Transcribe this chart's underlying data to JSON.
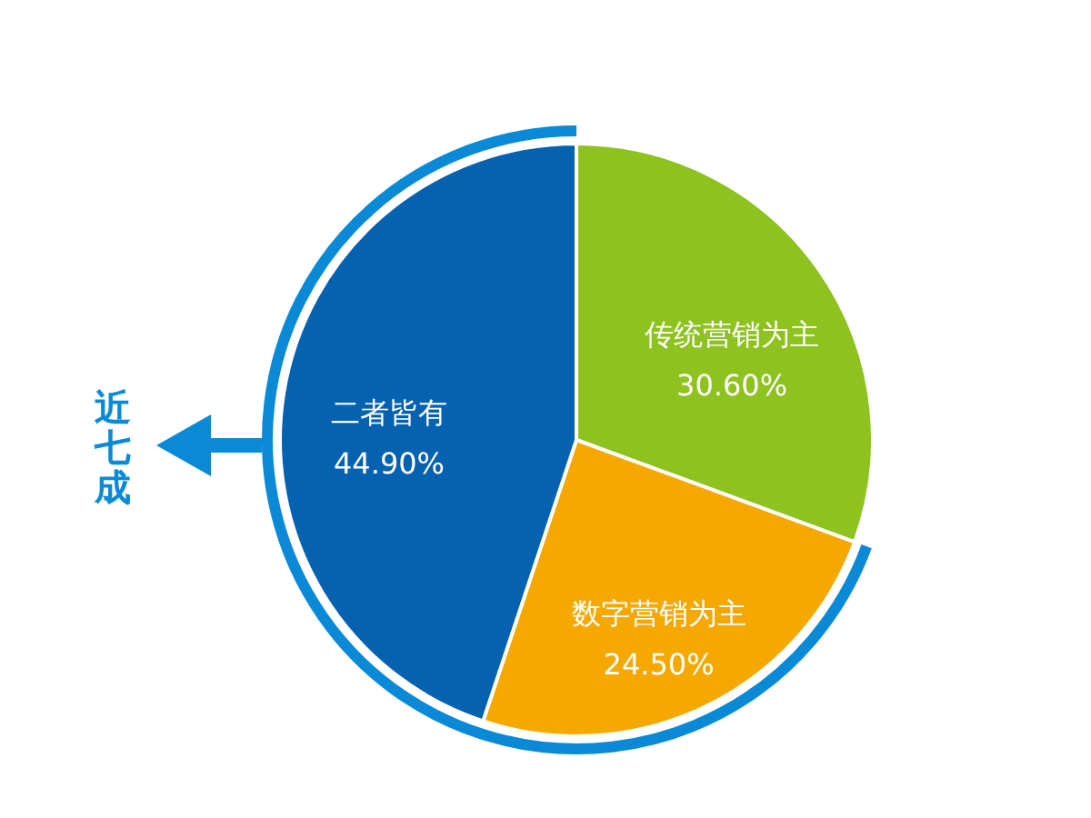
{
  "chart_data": {
    "type": "pie",
    "categories": [
      "传统营销为主",
      "数字营销为主",
      "二者皆有"
    ],
    "values": [
      30.6,
      24.5,
      44.9
    ],
    "colors": [
      "#8dc21f",
      "#f5a900",
      "#0462b0"
    ],
    "value_labels": [
      "30.60%",
      "24.50%",
      "44.90%"
    ],
    "annotations": [
      "近七成"
    ]
  }
}
